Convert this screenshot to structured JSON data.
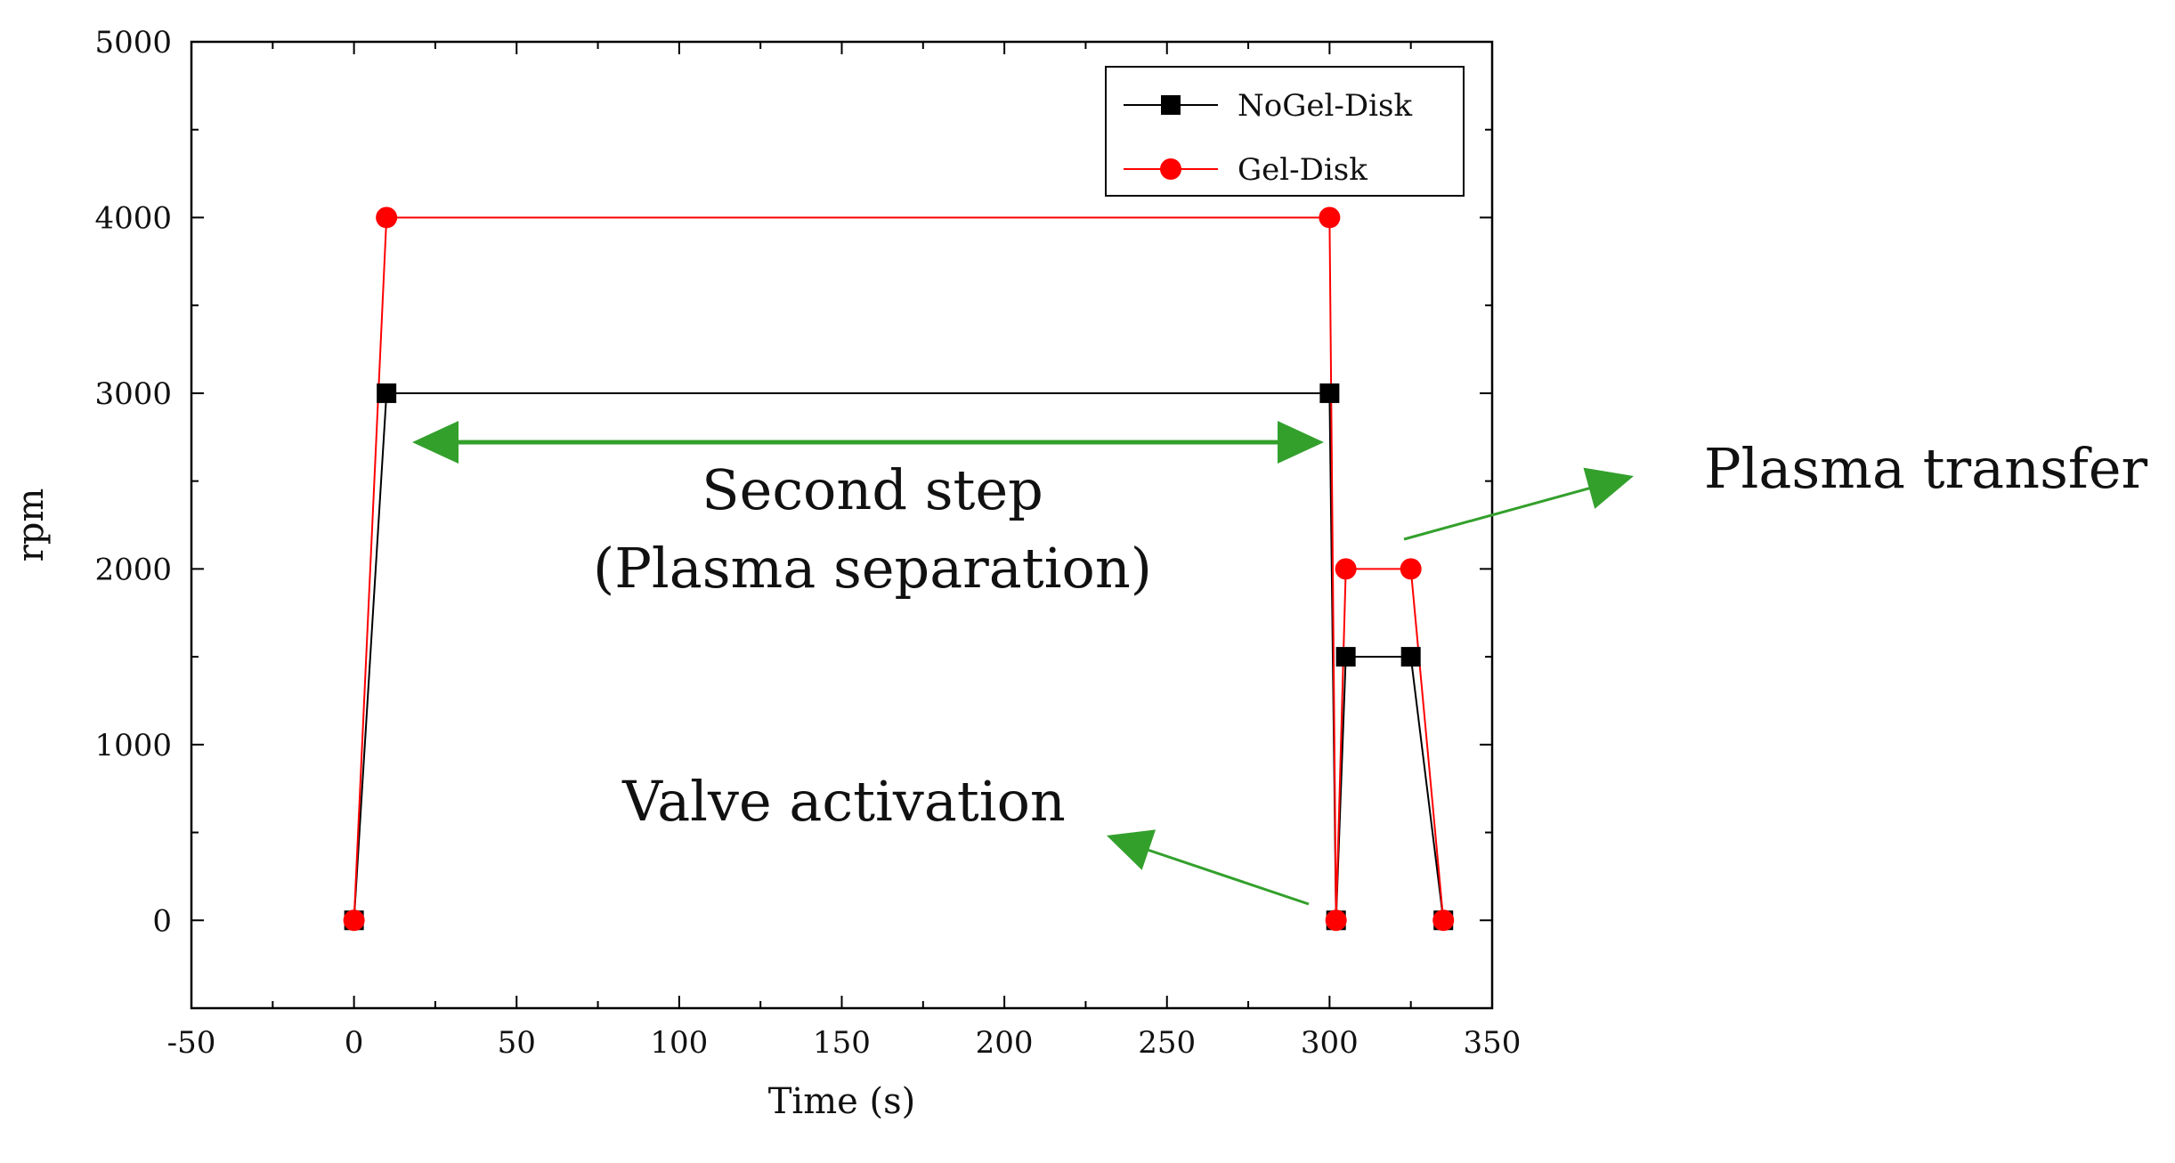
{
  "chart_data": {
    "type": "line",
    "xlabel": "Time (s)",
    "ylabel": "rpm",
    "xlim": [
      -50,
      350
    ],
    "ylim": [
      -500,
      5000
    ],
    "xticks": [
      -50,
      0,
      50,
      100,
      150,
      200,
      250,
      300,
      350
    ],
    "xtick_labels": [
      "-50",
      "0",
      "50",
      "100",
      "150",
      "200",
      "250",
      "300",
      "350"
    ],
    "yticks": [
      0,
      1000,
      2000,
      3000,
      4000,
      5000
    ],
    "ytick_labels": [
      "0",
      "1000",
      "2000",
      "3000",
      "4000",
      "5000"
    ],
    "legend_position": "top-right",
    "series": [
      {
        "name": "NoGel-Disk",
        "color": "#000000",
        "marker": "square",
        "x": [
          0,
          10,
          300,
          302,
          305,
          325,
          335
        ],
        "y": [
          0,
          3000,
          3000,
          0,
          1500,
          1500,
          0
        ]
      },
      {
        "name": "Gel-Disk",
        "color": "#ff0000",
        "marker": "circle",
        "x": [
          0,
          10,
          300,
          302,
          305,
          325,
          335
        ],
        "y": [
          0,
          4000,
          4000,
          0,
          2000,
          2000,
          0
        ]
      }
    ],
    "annotations": {
      "second_step_line1": "Second step",
      "second_step_line2": "(Plasma separation)",
      "plasma_transfer": "Plasma transfer",
      "valve_activation": "Valve activation",
      "arrow_color": "#33a02c"
    }
  }
}
